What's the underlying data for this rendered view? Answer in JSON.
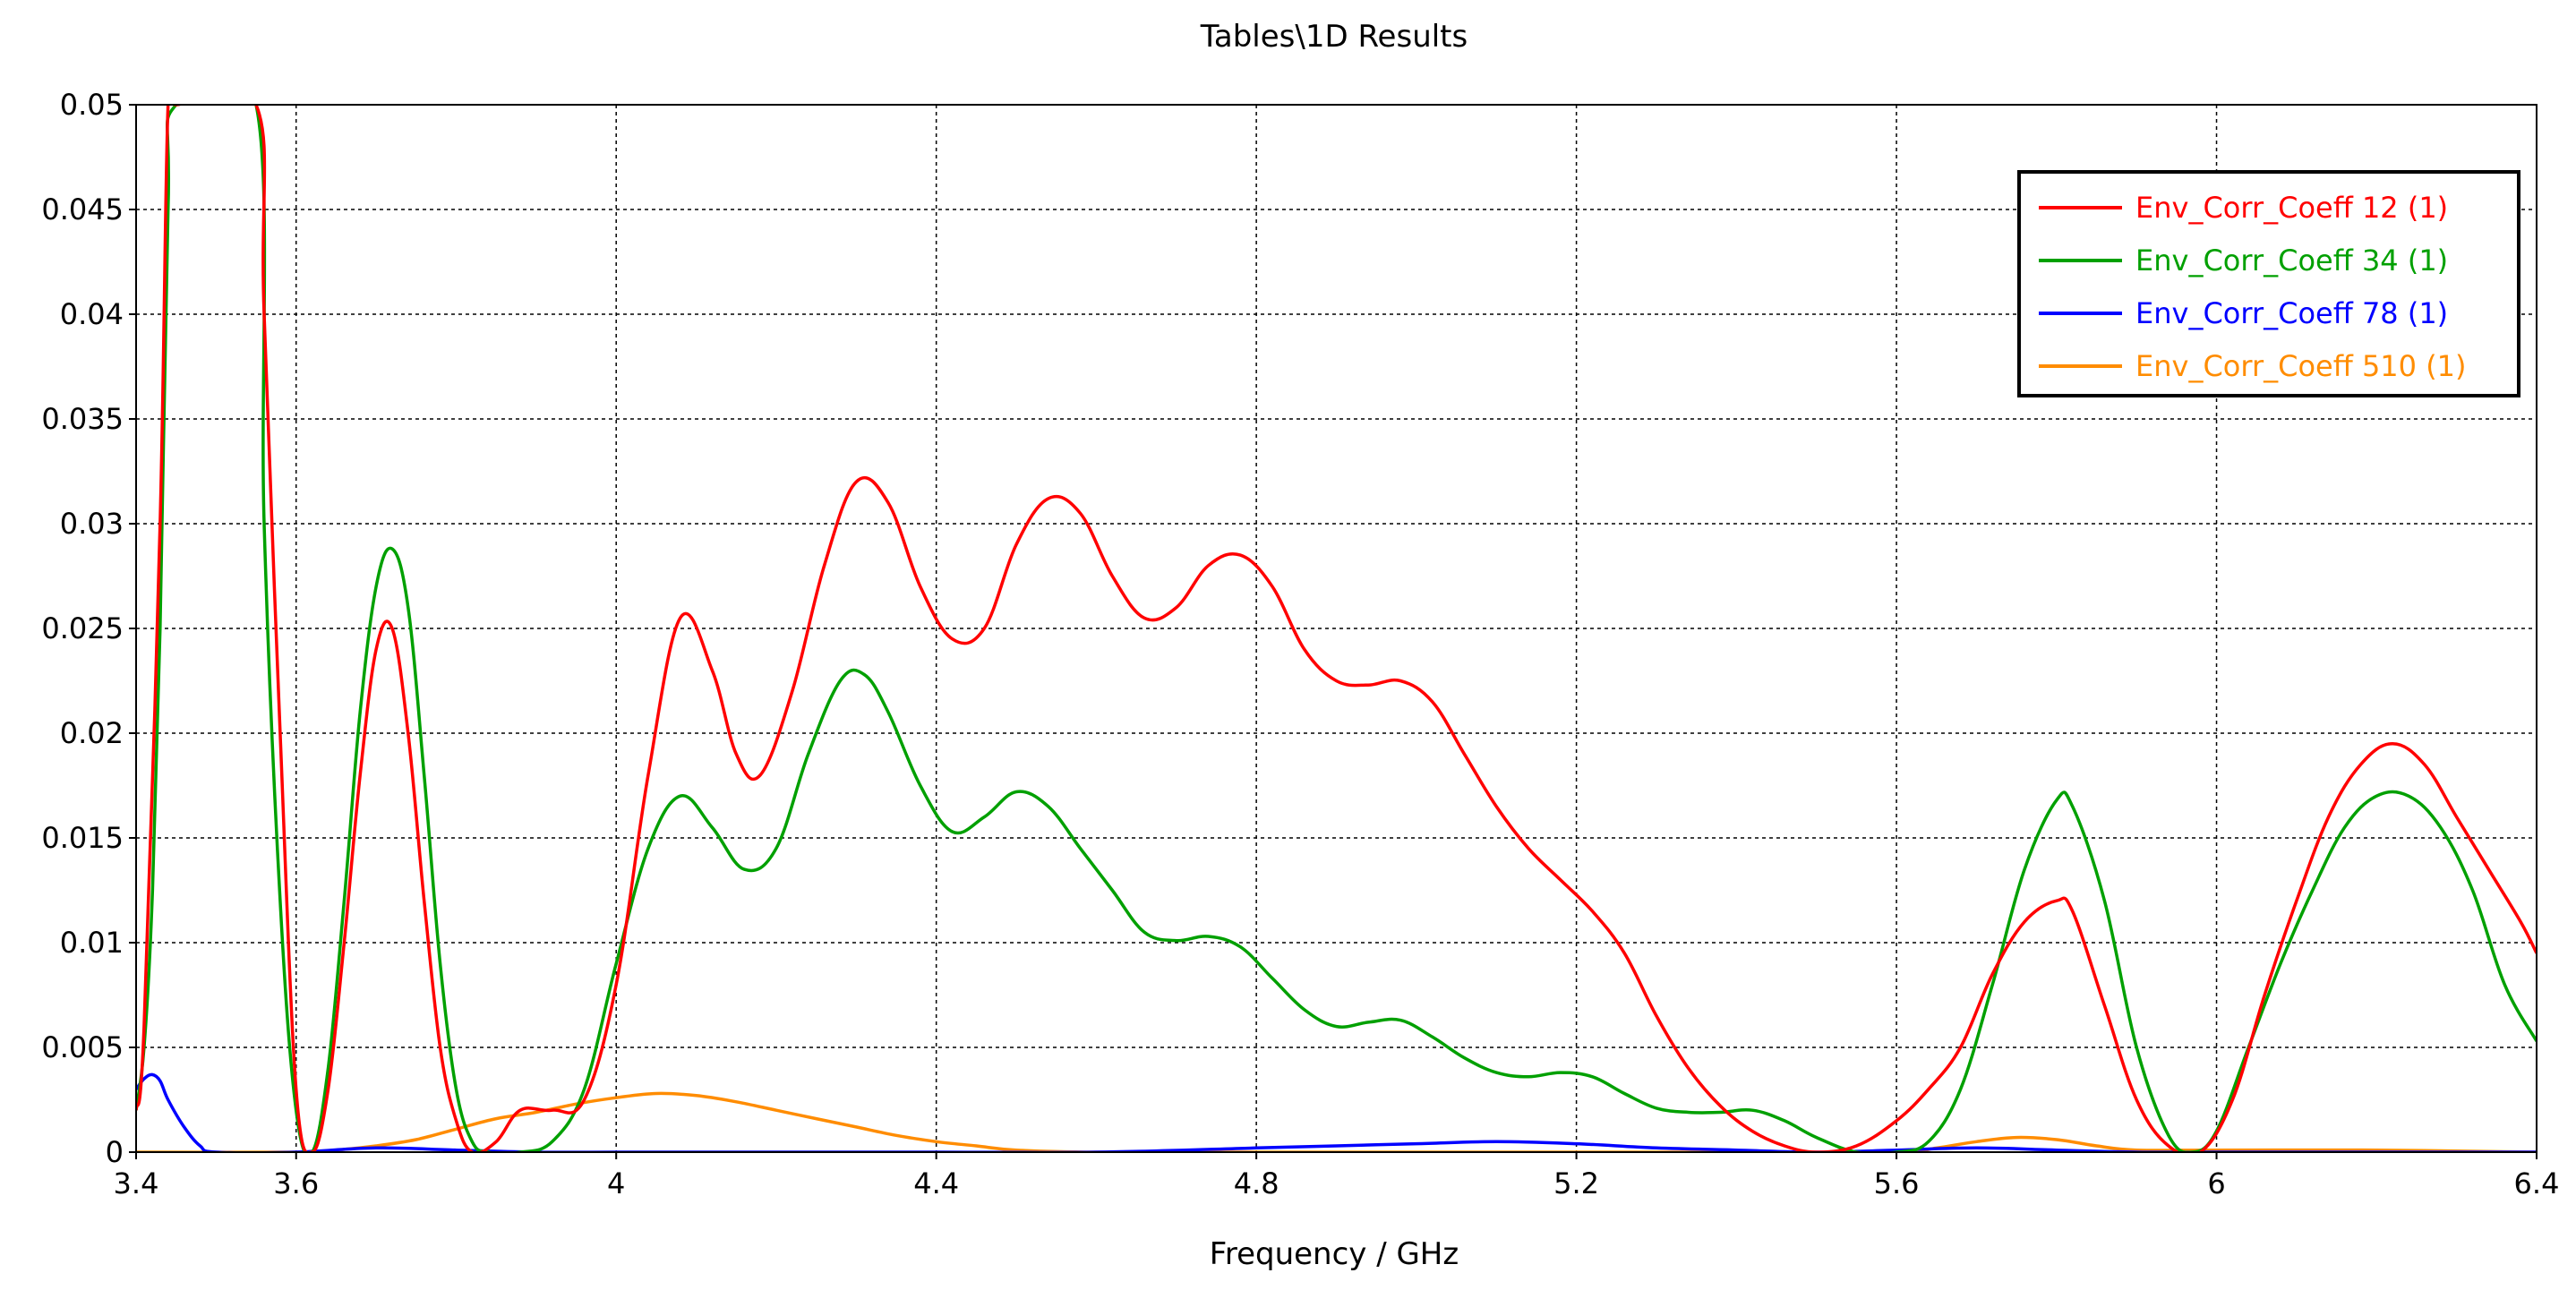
{
  "chart_data": {
    "type": "line",
    "title": "Tables\\1D Results",
    "xlabel": "Frequency / GHz",
    "ylabel": "",
    "xlim": [
      3.4,
      6.4
    ],
    "ylim": [
      0,
      0.05
    ],
    "xticks": [
      "3.4",
      "3.6",
      "4",
      "4.4",
      "4.8",
      "5.2",
      "5.6",
      "6",
      "6.4"
    ],
    "xtick_values": [
      3.4,
      3.6,
      4.0,
      4.4,
      4.8,
      5.2,
      5.6,
      6.0,
      6.4
    ],
    "yticks": [
      "0",
      "0.005",
      "0.01",
      "0.015",
      "0.02",
      "0.025",
      "0.03",
      "0.035",
      "0.04",
      "0.045",
      "0.05"
    ],
    "ytick_values": [
      0,
      0.005,
      0.01,
      0.015,
      0.02,
      0.025,
      0.03,
      0.035,
      0.04,
      0.045,
      0.05
    ],
    "grid": true,
    "legend_position": "top-right",
    "series": [
      {
        "name": "Env_Corr_Coeff 12 (1)",
        "color": "#ff0000",
        "x": [
          3.4,
          3.41,
          3.43,
          3.44,
          3.45,
          3.55,
          3.56,
          3.58,
          3.6,
          3.62,
          3.64,
          3.66,
          3.68,
          3.7,
          3.72,
          3.74,
          3.76,
          3.78,
          3.8,
          3.82,
          3.85,
          3.88,
          3.92,
          3.96,
          4.0,
          4.04,
          4.08,
          4.12,
          4.15,
          4.18,
          4.22,
          4.26,
          4.3,
          4.34,
          4.38,
          4.42,
          4.46,
          4.5,
          4.54,
          4.58,
          4.62,
          4.66,
          4.7,
          4.74,
          4.78,
          4.82,
          4.86,
          4.9,
          4.94,
          4.98,
          5.02,
          5.06,
          5.1,
          5.14,
          5.18,
          5.22,
          5.26,
          5.3,
          5.34,
          5.38,
          5.42,
          5.46,
          5.5,
          5.55,
          5.6,
          5.64,
          5.68,
          5.72,
          5.76,
          5.8,
          5.82,
          5.86,
          5.9,
          5.94,
          5.98,
          6.02,
          6.06,
          6.1,
          6.14,
          6.18,
          6.22,
          6.26,
          6.3,
          6.34,
          6.38,
          6.4
        ],
        "values": [
          0.002,
          0.006,
          0.03,
          0.05,
          0.05,
          0.05,
          0.04,
          0.02,
          0.003,
          0.0,
          0.003,
          0.01,
          0.018,
          0.024,
          0.025,
          0.02,
          0.012,
          0.005,
          0.0015,
          0.0,
          0.0005,
          0.002,
          0.002,
          0.0025,
          0.008,
          0.018,
          0.0255,
          0.023,
          0.019,
          0.018,
          0.022,
          0.028,
          0.032,
          0.031,
          0.027,
          0.0245,
          0.025,
          0.029,
          0.0312,
          0.0305,
          0.0275,
          0.0255,
          0.026,
          0.028,
          0.0285,
          0.027,
          0.024,
          0.0225,
          0.0223,
          0.0225,
          0.0215,
          0.019,
          0.0165,
          0.0145,
          0.013,
          0.0115,
          0.0095,
          0.0065,
          0.004,
          0.0022,
          0.001,
          0.0003,
          0.0,
          0.0003,
          0.0015,
          0.003,
          0.005,
          0.0085,
          0.011,
          0.012,
          0.0115,
          0.007,
          0.0025,
          0.0003,
          0.0,
          0.0025,
          0.0075,
          0.012,
          0.016,
          0.0185,
          0.0195,
          0.0185,
          0.016,
          0.0135,
          0.011,
          0.0095
        ]
      },
      {
        "name": "Env_Corr_Coeff 34 (1)",
        "color": "#00a000",
        "x": [
          3.4,
          3.41,
          3.42,
          3.43,
          3.44,
          3.45,
          3.55,
          3.56,
          3.58,
          3.6,
          3.62,
          3.64,
          3.66,
          3.68,
          3.7,
          3.72,
          3.74,
          3.76,
          3.78,
          3.8,
          3.82,
          3.84,
          3.88,
          3.92,
          3.96,
          4.0,
          4.04,
          4.08,
          4.12,
          4.16,
          4.2,
          4.24,
          4.28,
          4.31,
          4.34,
          4.38,
          4.42,
          4.46,
          4.5,
          4.54,
          4.58,
          4.62,
          4.66,
          4.7,
          4.74,
          4.78,
          4.82,
          4.86,
          4.9,
          4.94,
          4.98,
          5.02,
          5.06,
          5.1,
          5.14,
          5.18,
          5.22,
          5.26,
          5.3,
          5.34,
          5.38,
          5.42,
          5.46,
          5.5,
          5.55,
          5.6,
          5.64,
          5.68,
          5.72,
          5.76,
          5.8,
          5.82,
          5.86,
          5.9,
          5.94,
          5.97,
          6.0,
          6.04,
          6.08,
          6.12,
          6.16,
          6.2,
          6.24,
          6.28,
          6.32,
          6.36,
          6.4
        ],
        "values": [
          0.002,
          0.005,
          0.012,
          0.025,
          0.045,
          0.05,
          0.05,
          0.03,
          0.012,
          0.002,
          0.0,
          0.004,
          0.012,
          0.021,
          0.027,
          0.0288,
          0.026,
          0.018,
          0.009,
          0.003,
          0.0005,
          0.0,
          0.0,
          0.0005,
          0.003,
          0.009,
          0.0145,
          0.017,
          0.0155,
          0.0135,
          0.0145,
          0.019,
          0.0225,
          0.0228,
          0.021,
          0.0175,
          0.0153,
          0.016,
          0.0172,
          0.0165,
          0.0145,
          0.0125,
          0.0105,
          0.0101,
          0.0103,
          0.0098,
          0.0083,
          0.0068,
          0.006,
          0.0062,
          0.0063,
          0.0055,
          0.0045,
          0.0038,
          0.0036,
          0.0038,
          0.0036,
          0.0028,
          0.0021,
          0.0019,
          0.0019,
          0.002,
          0.0015,
          0.0007,
          0.0,
          0.0,
          0.0005,
          0.003,
          0.008,
          0.0135,
          0.0168,
          0.0165,
          0.012,
          0.005,
          0.0008,
          0.0,
          0.001,
          0.005,
          0.009,
          0.0125,
          0.0155,
          0.017,
          0.017,
          0.0155,
          0.0125,
          0.008,
          0.0053
        ]
      },
      {
        "name": "Env_Corr_Coeff 78 (1)",
        "color": "#0000ff",
        "x": [
          3.4,
          3.41,
          3.42,
          3.43,
          3.44,
          3.46,
          3.48,
          3.5,
          3.6,
          3.7,
          3.8,
          3.9,
          4.0,
          4.2,
          4.4,
          4.6,
          4.8,
          4.9,
          5.0,
          5.1,
          5.2,
          5.3,
          5.4,
          5.5,
          5.6,
          5.7,
          5.8,
          5.9,
          6.0,
          6.2,
          6.4
        ],
        "values": [
          0.003,
          0.0035,
          0.0037,
          0.0034,
          0.0025,
          0.0012,
          0.0003,
          0.0,
          0.0,
          0.0002,
          0.0001,
          0.0,
          0.0,
          0.0,
          0.0,
          0.0,
          0.0002,
          0.0003,
          0.0004,
          0.0005,
          0.0004,
          0.0002,
          0.0001,
          0.0,
          0.0001,
          0.0002,
          0.0001,
          0.0,
          0.0,
          0.0,
          0.0
        ]
      },
      {
        "name": "Env_Corr_Coeff 510 (1)",
        "color": "#ff8c00",
        "x": [
          3.4,
          3.6,
          3.65,
          3.7,
          3.75,
          3.8,
          3.85,
          3.9,
          3.95,
          4.0,
          4.05,
          4.1,
          4.15,
          4.2,
          4.25,
          4.3,
          4.35,
          4.4,
          4.45,
          4.5,
          4.6,
          4.8,
          5.0,
          5.2,
          5.4,
          5.6,
          5.65,
          5.7,
          5.75,
          5.8,
          5.85,
          5.9,
          6.0,
          6.2,
          6.4
        ],
        "values": [
          0.0,
          0.0,
          0.0001,
          0.0003,
          0.0006,
          0.0011,
          0.0016,
          0.0019,
          0.0023,
          0.0026,
          0.0028,
          0.0027,
          0.0024,
          0.002,
          0.0016,
          0.0012,
          0.0008,
          0.0005,
          0.0003,
          0.0001,
          0.0,
          0.0,
          0.0,
          0.0,
          0.0,
          0.0,
          0.0002,
          0.0005,
          0.0007,
          0.0006,
          0.0003,
          0.0001,
          0.0001,
          0.0001,
          0.0
        ]
      }
    ]
  }
}
